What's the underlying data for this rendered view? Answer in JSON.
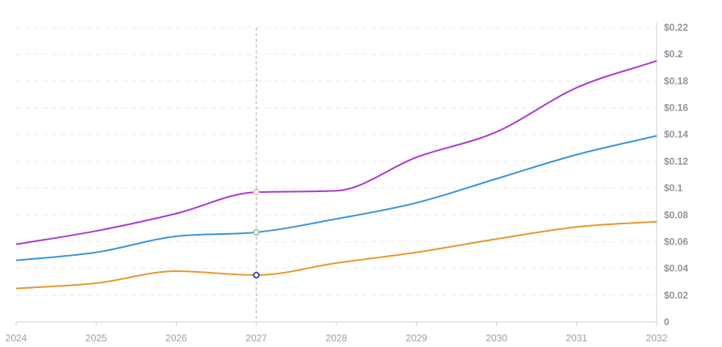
{
  "chart_data": {
    "type": "line",
    "title": "",
    "xlabel": "",
    "ylabel": "",
    "x": [
      2024,
      2025,
      2026,
      2027,
      2028,
      2029,
      2030,
      2031,
      2032
    ],
    "x_tick_labels": [
      "2024",
      "2025",
      "2026",
      "2027",
      "2028",
      "2029",
      "2030",
      "2031",
      "2032"
    ],
    "ylim": [
      0,
      0.22
    ],
    "y_ticks": [
      0,
      0.02,
      0.04,
      0.06,
      0.08,
      0.1,
      0.12,
      0.14,
      0.16,
      0.18,
      0.2,
      0.22
    ],
    "y_tick_labels": [
      "0",
      "$0.02",
      "$0.04",
      "$0.06",
      "$0.08",
      "$0.1",
      "$0.12",
      "$0.14",
      "$0.16",
      "$0.18",
      "$0.2",
      "$0.22"
    ],
    "y_axis_position": "right",
    "grid": true,
    "legend": "none",
    "hover_x": 2027,
    "series": [
      {
        "color": "#a93bd6",
        "marker_color": "#f5c19a",
        "values": [
          0.058,
          0.068,
          0.081,
          0.097,
          0.098,
          0.123,
          0.142,
          0.175,
          0.195
        ]
      },
      {
        "color": "#3a95dc",
        "marker_color": "#8fcf8f",
        "values": [
          0.046,
          0.052,
          0.064,
          0.067,
          0.077,
          0.089,
          0.107,
          0.125,
          0.139
        ]
      },
      {
        "color": "#e8972e",
        "marker_color": "#3b4aa8",
        "values": [
          0.025,
          0.029,
          0.038,
          0.035,
          0.044,
          0.052,
          0.062,
          0.071,
          0.075
        ]
      }
    ]
  }
}
